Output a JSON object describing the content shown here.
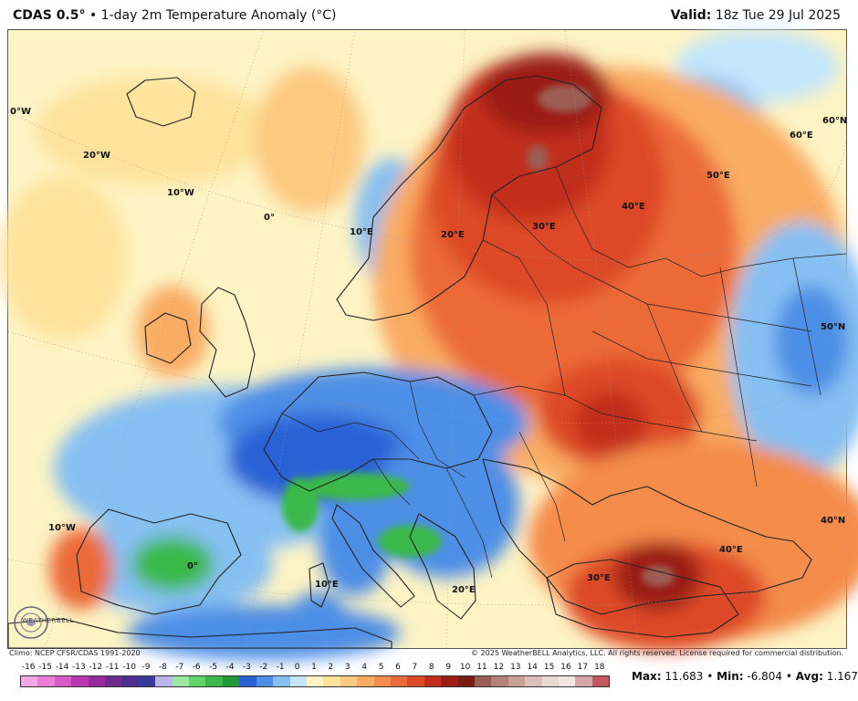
{
  "header": {
    "model": "CDAS 0.5°",
    "separator": "•",
    "product": "1-day 2m Temperature Anomaly (°C)",
    "valid_label": "Valid:",
    "valid_time": "18z Tue 29 Jul 2025"
  },
  "map": {
    "region": "Europe",
    "gridline_labels": [
      "0°W",
      "20°W",
      "10°W",
      "0°",
      "10°E",
      "20°E",
      "30°E",
      "40°E",
      "50°E",
      "60°E",
      "60°N",
      "50°N",
      "40°N",
      "10°W",
      "0°",
      "10°E",
      "20°E",
      "30°E",
      "40°E"
    ]
  },
  "logo_text": "WEATHERBELL",
  "credits": {
    "climo": "Climo: NCEP CFSR/CDAS 1991-2020",
    "copyright": "© 2025 WeatherBELL Analytics, LLC. All rights reserved. License required for commercial distribution."
  },
  "legend": {
    "labels": [
      "-16",
      "-15",
      "-14",
      "-13",
      "-12",
      "-11",
      "-10",
      "-9",
      "-8",
      "-7",
      "-6",
      "-5",
      "-4",
      "-3",
      "-2",
      "-1",
      "0",
      "1",
      "2",
      "3",
      "4",
      "5",
      "6",
      "7",
      "8",
      "9",
      "10",
      "11",
      "12",
      "13",
      "14",
      "15",
      "16",
      "17",
      "18"
    ],
    "colors": [
      "#f6a6e8",
      "#ea7ed8",
      "#d55bc8",
      "#b837b0",
      "#962b9a",
      "#6d2a8f",
      "#4d2d8d",
      "#3a3a9e",
      "#b8b6e8",
      "#9be8a0",
      "#62d46a",
      "#3bb84a",
      "#1f9a34",
      "#2a62d6",
      "#4e8ee6",
      "#86c0f2",
      "#c3e6fb",
      "#fdf3c4",
      "#fde39c",
      "#fcc980",
      "#f9ac64",
      "#f48c4c",
      "#ec6a39",
      "#dd4a28",
      "#c22e1c",
      "#9b1e12",
      "#7a1b13",
      "#9c5d52",
      "#b48176",
      "#c9a197",
      "#dcc0b8",
      "#ead9d2",
      "#f1e6e1",
      "#d8a6a8",
      "#c2585e"
    ]
  },
  "stats": {
    "max_label": "Max:",
    "max": "11.683",
    "min_label": "Min:",
    "min": "-6.804",
    "avg_label": "Avg:",
    "avg": "1.167",
    "separator": "•"
  }
}
